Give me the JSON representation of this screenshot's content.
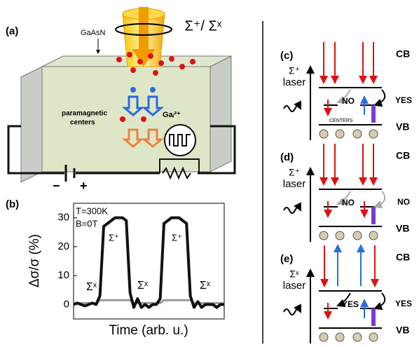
{
  "panel_a": {
    "label": "(a)",
    "beam": "Σ⁺/ Σˣ",
    "material": "GaAsN",
    "centers": [
      "paramagnetic",
      "centers"
    ],
    "gallium": "Gaᵢ²⁺",
    "minus": "−",
    "plus": "+"
  },
  "panel_b": {
    "label": "(b)"
  },
  "chart_data": {
    "type": "line",
    "ylabel": "Δσ/σ (%)",
    "xlabel": "Time (arb. u.)",
    "annotations": [
      "T=300K",
      "B=0T"
    ],
    "pulse_labels": [
      "Σ⁺",
      "Σ⁺"
    ],
    "dark_labels": [
      "Σˣ",
      "Σˣ",
      "Σˣ"
    ],
    "x": [
      0,
      2,
      4,
      6,
      8,
      10,
      12,
      14,
      16,
      18,
      20,
      22,
      24,
      26,
      28,
      30,
      32,
      34,
      36,
      38,
      40,
      42,
      44,
      46,
      48,
      50,
      52,
      54,
      56,
      58,
      60,
      62,
      64,
      66,
      68,
      70,
      72,
      74,
      76,
      78,
      80
    ],
    "xlim": [
      0,
      80
    ],
    "ylim": [
      -5,
      35
    ],
    "yticks": [
      0,
      10,
      20,
      30
    ],
    "series": [
      {
        "color": "#111111",
        "values": [
          0,
          0.5,
          0,
          -0.5,
          0,
          0.5,
          0,
          3,
          27,
          28,
          29,
          30,
          30,
          30,
          29,
          4,
          -1,
          2,
          -1,
          0,
          -1,
          0,
          0,
          2,
          28,
          29,
          30,
          30,
          30,
          29,
          28,
          3,
          -1,
          1,
          -1,
          0,
          0,
          0,
          -1,
          0,
          0
        ]
      },
      {
        "color": "#999999",
        "values": [
          0.5,
          0.5,
          0.5,
          0.5,
          0.5,
          0.5,
          0.5,
          1.5,
          1.5,
          1.5,
          1.5,
          1.5,
          1.5,
          1.5,
          1.5,
          1.5,
          0.5,
          0.5,
          0.5,
          0.5,
          0.5,
          0.5,
          0.5,
          0.5,
          1.5,
          1.5,
          1.5,
          1.5,
          1.5,
          1.5,
          1.5,
          1.5,
          0.5,
          0.5,
          0.5,
          0.5,
          0.5,
          0.5,
          0.5,
          0.5,
          0.5
        ]
      }
    ]
  },
  "panel_c": {
    "label": "(c)",
    "cb": "CB",
    "vb": "VB",
    "laser": [
      "Σ⁺",
      "laser"
    ],
    "left": "NO",
    "right": "YES",
    "centers": "CENTERS"
  },
  "panel_d": {
    "label": "(d)",
    "cb": "CB",
    "vb": "VB",
    "laser": [
      "Σ⁺",
      "laser"
    ],
    "left": "NO",
    "right": "NO"
  },
  "panel_e": {
    "label": "(e)",
    "cb": "CB",
    "vb": "VB",
    "laser": [
      "Σˣ",
      "laser"
    ],
    "left": "YES",
    "right": "YES"
  }
}
